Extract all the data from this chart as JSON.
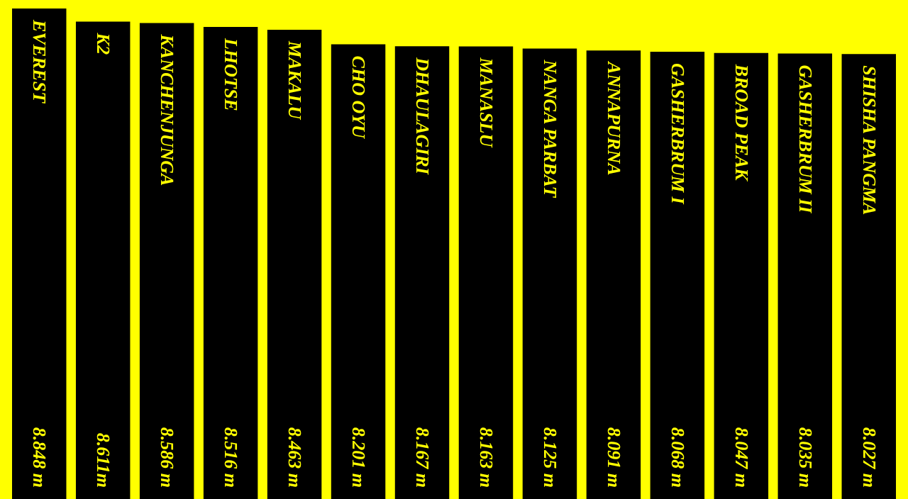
{
  "chart_data": {
    "type": "bar",
    "color": "#000000",
    "categories": [
      "EVEREST",
      "K2",
      "KANCHENJUNGA",
      "LHOTSE",
      "MAKALU",
      "CHO OYU",
      "DHAULAGIRI",
      "MANASLU",
      "NANGA PARBAT",
      "ANNAPURNA",
      "GASHERBRUM I",
      "BROAD PEAK",
      "GASHERBRUM II",
      "SHISHA PANGMA"
    ],
    "values": [
      8.848,
      8.611,
      8.586,
      8.516,
      8.463,
      8.201,
      8.167,
      8.163,
      8.125,
      8.091,
      8.068,
      8.047,
      8.035,
      8.027
    ],
    "value_labels": [
      "8.848 m",
      "8.611m",
      "8.586 m",
      "8.516 m",
      "8.463 m",
      "8.201 m",
      "8.167 m",
      "8.163 m",
      "8.125 m",
      "8.091 m",
      "8.068 m",
      "8.047 m",
      "8.035 m",
      "8.027 m"
    ]
  }
}
